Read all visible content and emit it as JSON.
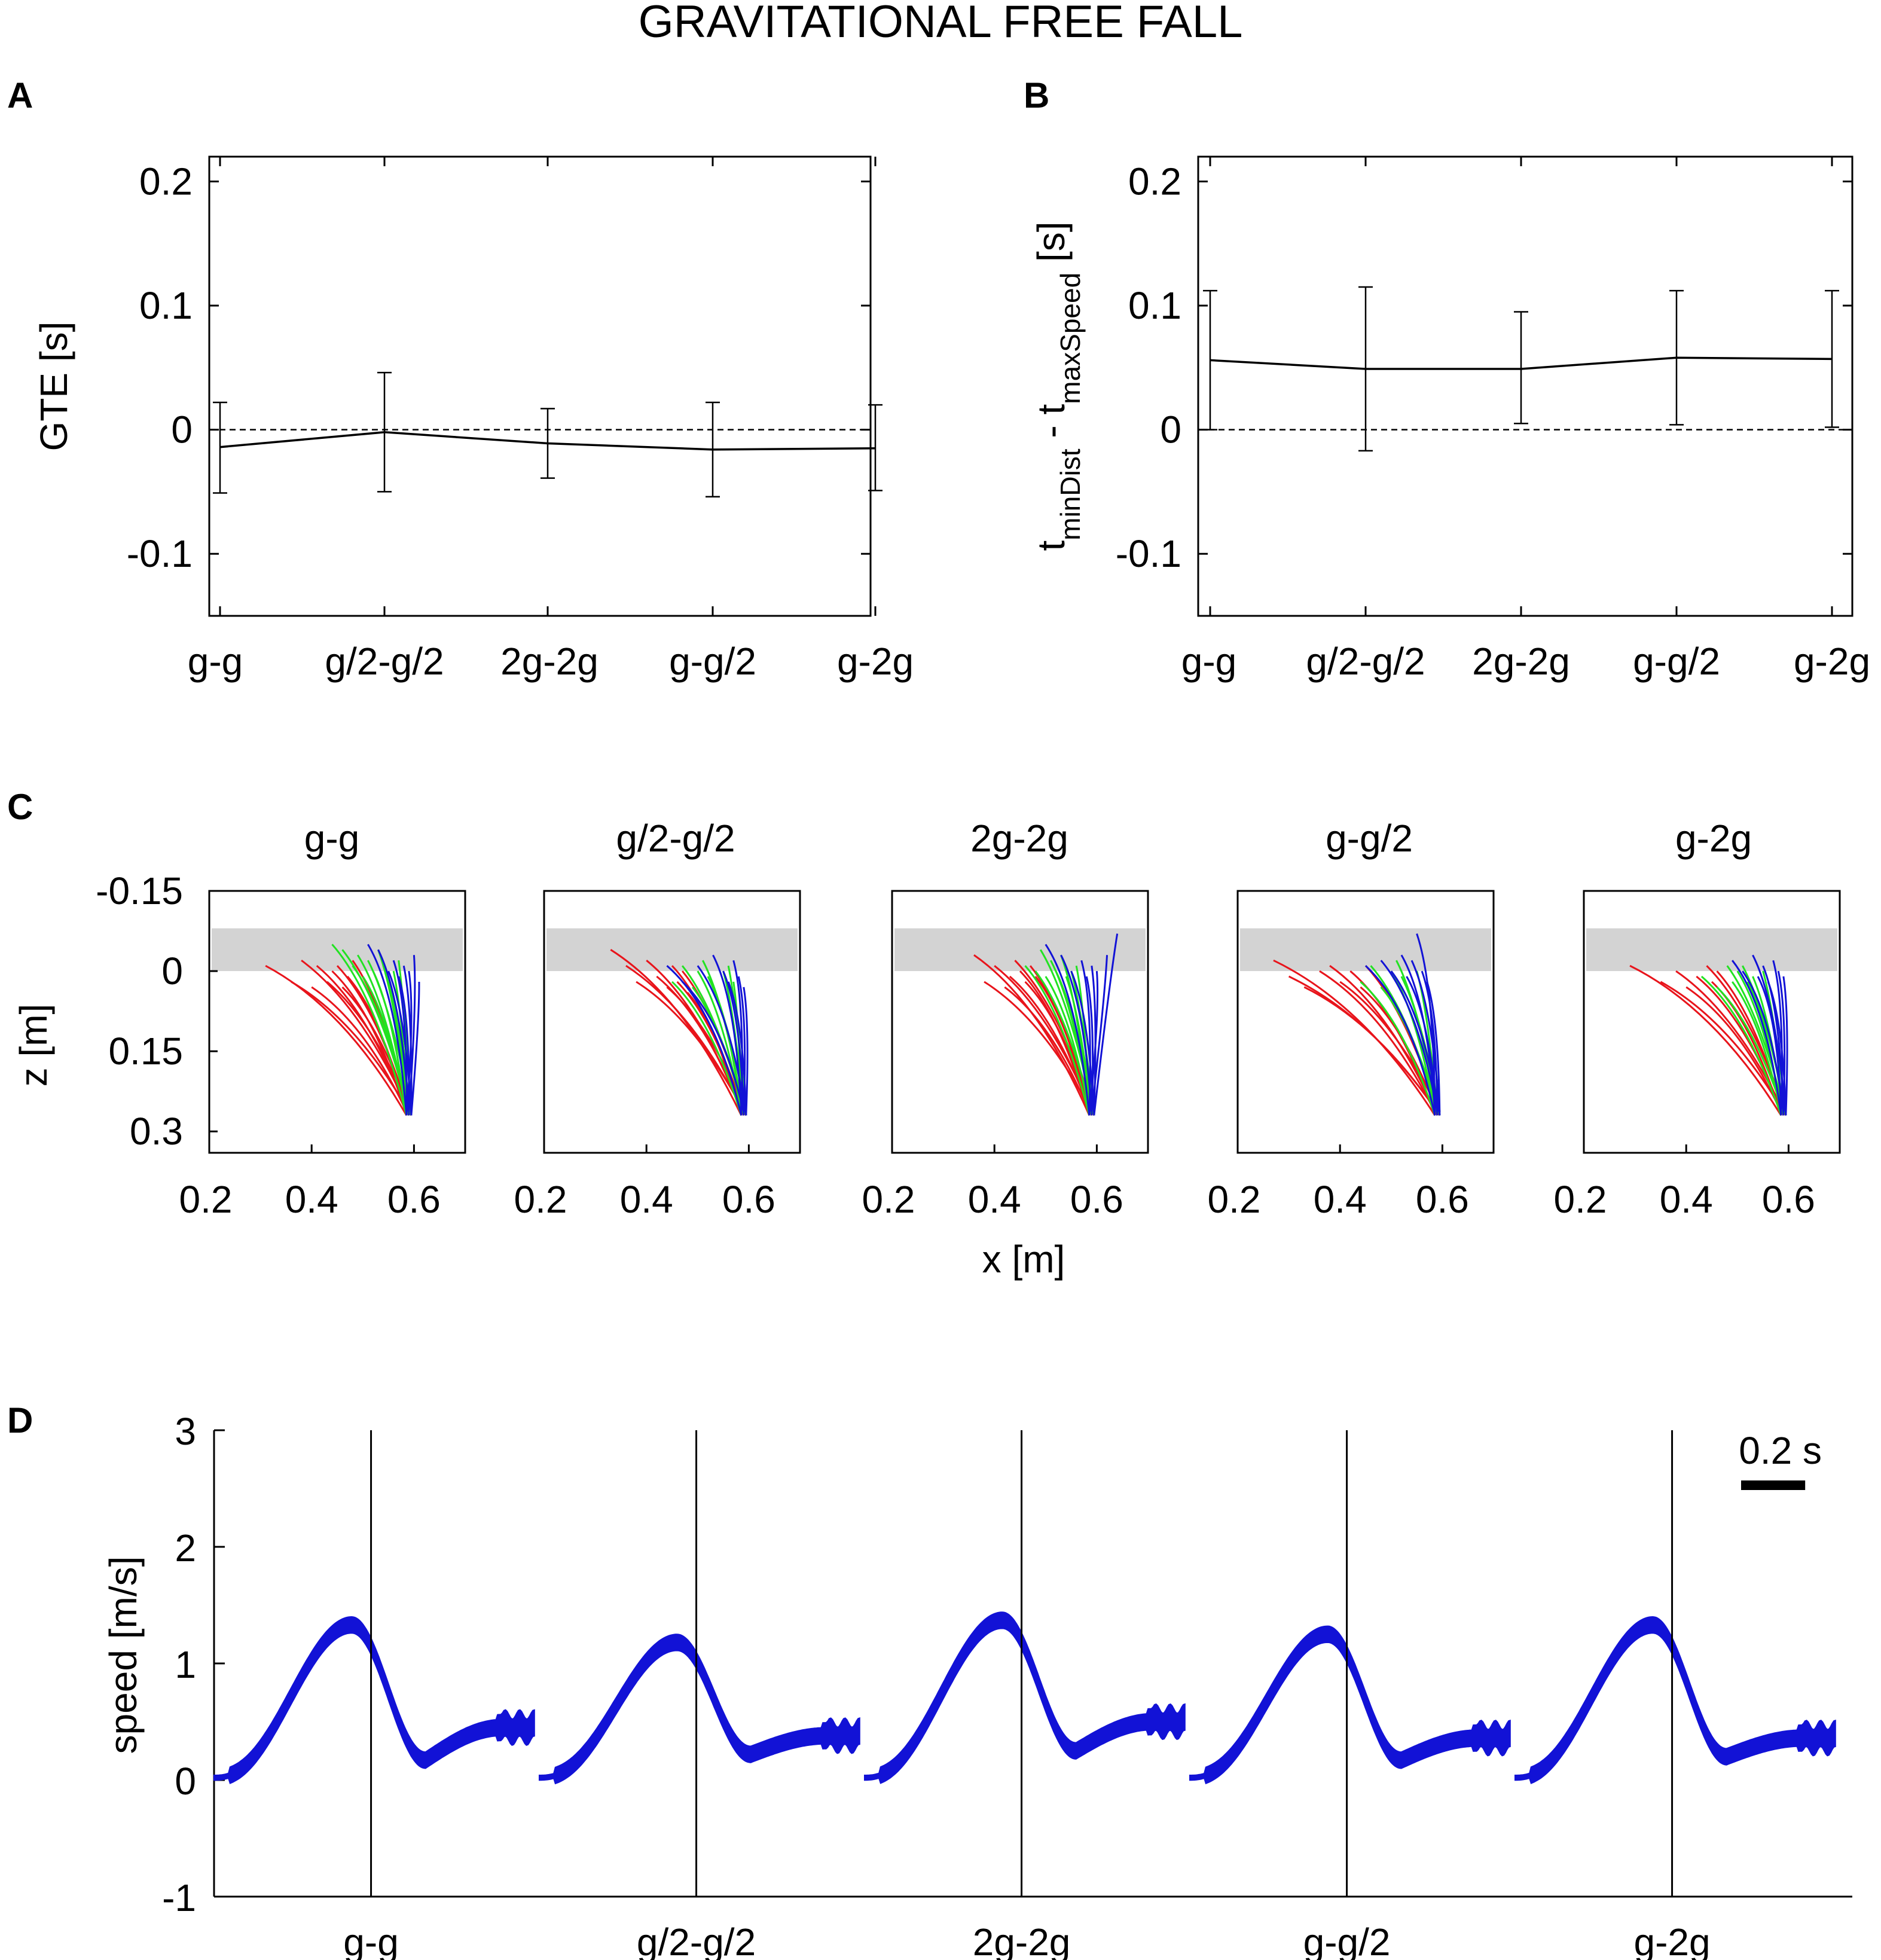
{
  "title": "GRAVITATIONAL FREE FALL",
  "panel_letters": [
    "A",
    "B",
    "C",
    "D"
  ],
  "conditions": [
    "g-g",
    "g/2-g/2",
    "2g-2g",
    "g-g/2",
    "g-2g"
  ],
  "colors": {
    "axis": "#000000",
    "red": "#e8141b",
    "green": "#22e222",
    "blue": "#1212d6",
    "gray_band": "#d3d3d3"
  },
  "chart_data": [
    {
      "id": "A",
      "type": "line",
      "ylabel": "GTE [s]",
      "ylim": [
        -0.15,
        0.22
      ],
      "yticks": [
        0.2,
        0.1,
        0,
        -0.1
      ],
      "ytick_labels": [
        "0.2",
        "0.1",
        "0",
        "-0.1"
      ],
      "reference_line": 0,
      "mean": [
        -0.014,
        -0.002,
        -0.011,
        -0.016,
        -0.015
      ],
      "err_lower": [
        -0.051,
        -0.05,
        -0.039,
        -0.054,
        -0.049
      ],
      "err_upper": [
        0.022,
        0.046,
        0.017,
        0.022,
        0.02
      ]
    },
    {
      "id": "B",
      "type": "line",
      "ylabel_parts": [
        "t",
        "minDist",
        " - t",
        "maxSpeed",
        " [s]"
      ],
      "ylim": [
        -0.15,
        0.22
      ],
      "yticks": [
        0.2,
        0.1,
        0,
        -0.1
      ],
      "ytick_labels": [
        "0.2",
        "0.1",
        "0",
        "-0.1"
      ],
      "reference_line": 0,
      "mean": [
        0.056,
        0.049,
        0.049,
        0.058,
        0.057
      ],
      "err_lower": [
        0.0,
        -0.017,
        0.005,
        0.004,
        0.002
      ],
      "err_upper": [
        0.112,
        0.115,
        0.095,
        0.112,
        0.112
      ]
    },
    {
      "id": "C",
      "type": "line",
      "xlabel": "x [m]",
      "ylabel": "z [m]",
      "xlim": [
        0.2,
        0.7
      ],
      "ylim": [
        -0.15,
        0.34
      ],
      "xticks": [
        0.2,
        0.4,
        0.6
      ],
      "xtick_labels": [
        "0.2",
        "0.4",
        "0.6"
      ],
      "yticks": [
        -0.15,
        0,
        0.15,
        0.3
      ],
      "ytick_labels": [
        "-0.15",
        "0",
        "0.15",
        "0.3"
      ],
      "band_z": [
        -0.08,
        0
      ],
      "end_point": [
        0.59,
        0.27
      ],
      "subplots": [
        {
          "red_x": [
            0.31,
            0.36,
            0.38,
            0.4,
            0.41,
            0.43,
            0.44,
            0.45,
            0.46,
            0.47,
            0.48
          ],
          "red_z": [
            -0.01,
            0.02,
            -0.02,
            0.03,
            -0.01,
            0.02,
            0.0,
            -0.01,
            0.03,
            0.01,
            -0.02
          ],
          "green_x": [
            0.44,
            0.46,
            0.48,
            0.49,
            0.5,
            0.51,
            0.52,
            0.53,
            0.54,
            0.55,
            0.56,
            0.57
          ],
          "green_z": [
            -0.05,
            -0.04,
            -0.01,
            -0.03,
            0.01,
            -0.02,
            0.0,
            -0.04,
            -0.01,
            0.02,
            0.0,
            -0.02
          ],
          "blue_x": [
            0.51,
            0.53,
            0.55,
            0.56,
            0.57,
            0.58,
            0.59,
            0.6,
            0.61
          ],
          "blue_z": [
            -0.05,
            -0.04,
            0.0,
            -0.02,
            0.01,
            -0.01,
            0.0,
            -0.03,
            0.02
          ]
        },
        {
          "red_x": [
            0.33,
            0.36,
            0.38,
            0.4,
            0.42,
            0.44,
            0.45,
            0.46,
            0.47,
            0.48
          ],
          "red_z": [
            -0.04,
            -0.01,
            0.02,
            -0.02,
            0.01,
            0.03,
            -0.01,
            0.02,
            0.0,
            0.04
          ],
          "green_x": [
            0.45,
            0.47,
            0.49,
            0.5,
            0.51,
            0.52,
            0.53,
            0.55,
            0.56,
            0.57
          ],
          "green_z": [
            0.02,
            -0.01,
            0.03,
            0.0,
            -0.02,
            0.01,
            0.03,
            0.0,
            -0.01,
            0.02
          ],
          "blue_x": [
            0.44,
            0.47,
            0.5,
            0.53,
            0.55,
            0.56,
            0.57,
            0.58,
            0.59
          ],
          "blue_z": [
            -0.01,
            0.02,
            -0.01,
            -0.03,
            0.0,
            0.02,
            -0.02,
            0.01,
            0.03
          ]
        },
        {
          "red_x": [
            0.36,
            0.38,
            0.4,
            0.42,
            0.43,
            0.44,
            0.45,
            0.46,
            0.47,
            0.48
          ],
          "red_z": [
            -0.03,
            0.02,
            -0.01,
            0.03,
            0.01,
            -0.02,
            0.0,
            0.02,
            -0.01,
            0.01
          ],
          "green_x": [
            0.46,
            0.48,
            0.49,
            0.5,
            0.51,
            0.52,
            0.53,
            0.54,
            0.55,
            0.56
          ],
          "green_z": [
            -0.01,
            0.0,
            -0.04,
            0.01,
            -0.02,
            0.0,
            -0.03,
            0.01,
            0.0,
            -0.01
          ],
          "blue_x": [
            0.5,
            0.53,
            0.55,
            0.57,
            0.58,
            0.59,
            0.6,
            0.62,
            0.64
          ],
          "blue_z": [
            -0.05,
            -0.03,
            0.0,
            -0.02,
            0.01,
            -0.01,
            0.0,
            -0.03,
            -0.07
          ]
        },
        {
          "red_x": [
            0.27,
            0.3,
            0.33,
            0.36,
            0.38,
            0.4,
            0.42,
            0.44,
            0.45
          ],
          "red_z": [
            -0.02,
            0.01,
            0.03,
            0.0,
            -0.01,
            0.02,
            0.0,
            0.03,
            -0.01
          ],
          "green_x": [
            0.44,
            0.46,
            0.48,
            0.5,
            0.51,
            0.52,
            0.53,
            0.55,
            0.57
          ],
          "green_z": [
            0.02,
            -0.01,
            0.03,
            0.0,
            -0.02,
            0.01,
            0.03,
            0.0,
            0.02
          ],
          "blue_x": [
            0.45,
            0.48,
            0.5,
            0.52,
            0.53,
            0.54,
            0.55,
            0.56,
            0.57
          ],
          "blue_z": [
            -0.01,
            -0.02,
            0.0,
            -0.03,
            0.01,
            -0.02,
            -0.07,
            0.0,
            0.02
          ]
        },
        {
          "red_x": [
            0.29,
            0.35,
            0.38,
            0.4,
            0.42,
            0.44,
            0.45,
            0.46
          ],
          "red_z": [
            -0.01,
            0.02,
            0.0,
            0.03,
            0.01,
            -0.01,
            0.02,
            0.0
          ],
          "green_x": [
            0.43,
            0.46,
            0.48,
            0.49,
            0.5,
            0.51,
            0.52,
            0.53,
            0.55
          ],
          "green_z": [
            0.01,
            0.03,
            -0.01,
            0.02,
            0.0,
            -0.01,
            0.02,
            0.01,
            0.0
          ],
          "blue_x": [
            0.49,
            0.51,
            0.53,
            0.54,
            0.55,
            0.56,
            0.57,
            0.58,
            0.59
          ],
          "blue_z": [
            -0.02,
            0.0,
            -0.03,
            0.01,
            -0.01,
            0.02,
            -0.02,
            0.0,
            0.01
          ]
        }
      ]
    },
    {
      "id": "D",
      "type": "area",
      "ylabel": "speed [m/s]",
      "ylim": [
        -1,
        3
      ],
      "yticks": [
        3,
        2,
        1,
        0,
        -1
      ],
      "ytick_labels": [
        "3",
        "2",
        "1",
        "0",
        "-1"
      ],
      "scalebar_label": "0.2 s",
      "scalebar_seconds": 0.2,
      "segment_duration_s": 1.0,
      "peak_time_s": 0.43,
      "marker_time_s": 0.49,
      "peak_speed": [
        1.33,
        1.18,
        1.37,
        1.25,
        1.33
      ],
      "trough_speed": [
        0.17,
        0.22,
        0.25,
        0.17,
        0.2
      ],
      "tail_speed": [
        0.45,
        0.38,
        0.5,
        0.36,
        0.36
      ],
      "band_halfwidth": 0.07
    }
  ]
}
